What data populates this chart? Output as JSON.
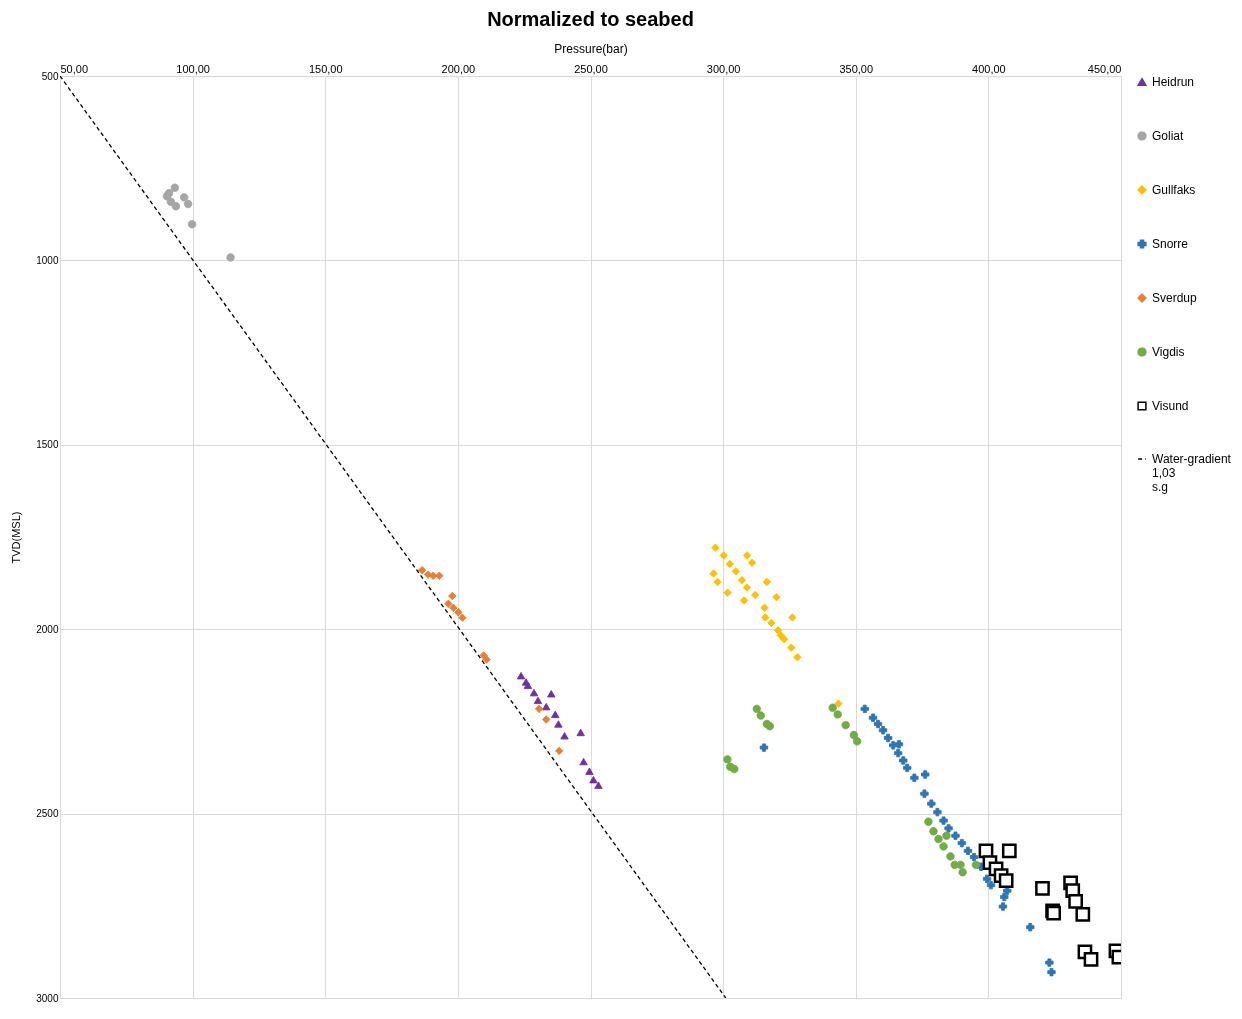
{
  "chart_data": {
    "type": "scatter",
    "title": "Normalized to seabed",
    "xlabel": "Pressure(bar)",
    "ylabel": "TVD(MSL)",
    "xlim": [
      50,
      450
    ],
    "xticks": [
      {
        "value": 50,
        "label": "50,00"
      },
      {
        "value": 100,
        "label": "100,00"
      },
      {
        "value": 150,
        "label": "150,00"
      },
      {
        "value": 200,
        "label": "200,00"
      },
      {
        "value": 250,
        "label": "250,00"
      },
      {
        "value": 300,
        "label": "300,00"
      },
      {
        "value": 350,
        "label": "350,00"
      },
      {
        "value": 400,
        "label": "400,00"
      },
      {
        "value": 450,
        "label": "450,00"
      }
    ],
    "ylim": [
      3000,
      500
    ],
    "yticks": [
      500,
      1000,
      1500,
      2000,
      2500,
      3000
    ],
    "grid": true,
    "legend": "right",
    "series": [
      {
        "name": "Heidrun",
        "color": "#7030a0",
        "marker": "triangle",
        "x": [
          223.8,
          225.7,
          226.4,
          228.7,
          230.2,
          235.2,
          233.3,
          236.7,
          237.9,
          240.2,
          246.3,
          247.4,
          249.6,
          251.1,
          253
        ],
        "values": [
          2126,
          2143,
          2152,
          2172,
          2193,
          2175,
          2210,
          2231,
          2257,
          2289,
          2280,
          2359,
          2385,
          2408,
          2423
        ]
      },
      {
        "name": "Goliat",
        "color": "#a5a5a5",
        "marker": "circle",
        "x": [
          91.1,
          93.3,
          91.8,
          93.7,
          96.8,
          98.3,
          99.8,
          114.3,
          90.3
        ],
        "values": [
          818,
          803,
          841,
          853,
          829,
          847,
          902,
          992,
          826
        ]
      },
      {
        "name": "Gullfaks",
        "color": "#ffc000",
        "marker": "diamond",
        "x": [
          297.1,
          300.2,
          302.5,
          304.8,
          307.1,
          309,
          296.4,
          297.9,
          301.7,
          309,
          310.9,
          316.5,
          307.9,
          312.1,
          320.1,
          315.6,
          315.9,
          318.2,
          320.7,
          323,
          325.7,
          328,
          326.1,
          321.8,
          343.5
        ],
        "values": [
          1779,
          1800,
          1823,
          1843,
          1867,
          1887,
          1849,
          1872,
          1901,
          1800,
          1820,
          1872,
          1922,
          1907,
          1913,
          1942,
          1968,
          1983,
          2003,
          2027,
          2050,
          2076,
          1968,
          2017,
          2202
        ]
      },
      {
        "name": "Snorre",
        "color": "#2e75b6",
        "marker": "cross",
        "x": [
          353.4,
          356.5,
          358.4,
          360.3,
          362.2,
          364.1,
          366,
          367.9,
          366.3,
          369.4,
          372.1,
          376.2,
          375.9,
          378.5,
          380.8,
          383.1,
          385,
          387.6,
          390,
          392.3,
          394.6,
          397.2,
          399.5,
          401,
          406,
          407.1,
          405.5,
          415.8,
          423,
          423.8,
          315.4
        ],
        "values": [
          2216,
          2240,
          2257,
          2274,
          2295,
          2315,
          2336,
          2356,
          2312,
          2376,
          2403,
          2394,
          2446,
          2473,
          2496,
          2519,
          2540,
          2560,
          2580,
          2601,
          2618,
          2644,
          2677,
          2694,
          2726,
          2709,
          2752,
          2808,
          2904,
          2930,
          2321
        ]
      },
      {
        "name": "Sverdup",
        "color": "#ed7d31",
        "marker": "diamond",
        "x": [
          186.5,
          188.8,
          190.7,
          193,
          197.9,
          196.4,
          198.3,
          200.2,
          201.7,
          209.7,
          210.8,
          230.6,
          233.3,
          238.2
        ],
        "values": [
          1840,
          1852,
          1855,
          1855,
          1910,
          1931,
          1942,
          1954,
          1969,
          2071,
          2082,
          2216,
          2245,
          2330
        ]
      },
      {
        "name": "Vigdis",
        "color": "#70ad47",
        "marker": "circle",
        "x": [
          312.7,
          314.2,
          316.5,
          317.6,
          301.6,
          302.7,
          304.2,
          341.3,
          343.2,
          346.2,
          349.3,
          350.5,
          377.4,
          379.3,
          381.2,
          383.1,
          385.7,
          387.3,
          389.5,
          390.3,
          395.3,
          384.2
        ],
        "values": [
          2216,
          2234,
          2257,
          2263,
          2353,
          2373,
          2379,
          2213,
          2231,
          2260,
          2287,
          2304,
          2522,
          2548,
          2569,
          2589,
          2616,
          2639,
          2639,
          2659,
          2639,
          2560
        ]
      },
      {
        "name": "Visund",
        "color": "#000000",
        "marker": "square",
        "x": [
          399.1,
          407.9,
          400.6,
          402.9,
          404.8,
          406.7,
          420.4,
          431,
          431.8,
          432.9,
          435.6,
          424.2,
          424.6,
          436.4,
          438.7,
          448.1,
          449.2
        ],
        "values": [
          2601,
          2601,
          2633,
          2650,
          2668,
          2682,
          2703,
          2688,
          2709,
          2738,
          2773,
          2764,
          2770,
          2875,
          2895,
          2872,
          2889
        ]
      },
      {
        "name": "Water-gradient 1,03 s.g",
        "type": "line",
        "color": "#000000",
        "line_style": "dashed",
        "marker": "none",
        "x": [
          50,
          301
        ],
        "values": [
          500,
          3000
        ]
      }
    ]
  }
}
